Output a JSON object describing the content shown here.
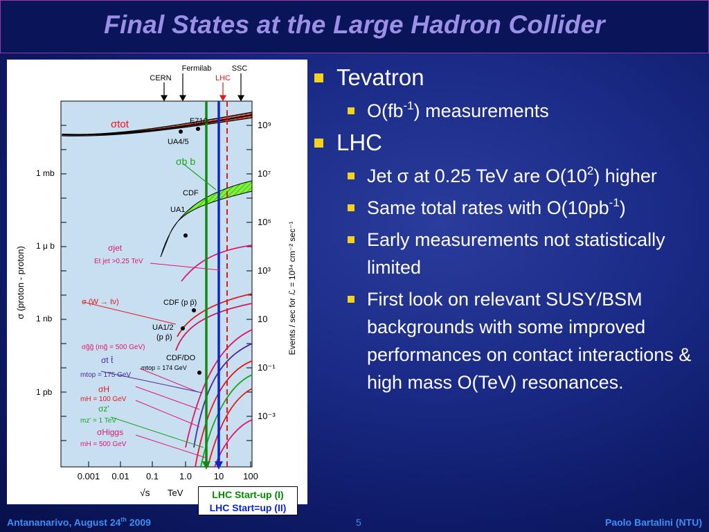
{
  "slide": {
    "title": "Final States at the Large Hadron Collider",
    "page_number": "5",
    "footer_left_main": "Antananarivo, August 24",
    "footer_left_sup": "th",
    "footer_left_tail": " 2009",
    "footer_right": "Paolo Bartalini (NTU)"
  },
  "bullets": {
    "tevatron": "Tevatron",
    "tev_sub1_pre": "O(fb",
    "tev_sub1_sup": "-1",
    "tev_sub1_post": ") measurements",
    "lhc": "LHC",
    "lhc_sub1_pre": "Jet σ at 0.25 TeV are O(10",
    "lhc_sub1_sup": "2",
    "lhc_sub1_post": ") higher",
    "lhc_sub2_pre": "Same total rates with O(10pb",
    "lhc_sub2_sup": "-1",
    "lhc_sub2_post": ")",
    "lhc_sub3": "Early measurements not statistically limited",
    "lhc_sub4": "First look on relevant SUSY/BSM backgrounds with some improved performances on contact interactions & high mass O(TeV) resonances."
  },
  "figure": {
    "legend_lhc_startup_1": "LHC Start-up (I)",
    "legend_lhc_startup_2": "LHC Start=up (II)",
    "top_labels": {
      "fermilab": "Fermilab",
      "ssc": "SSC",
      "cern": "CERN",
      "lhc": "LHC"
    },
    "left_axis_label": "σ (proton - proton)",
    "left_ticks": [
      "1 mb",
      "1 μ b",
      "1 nb",
      "1 pb"
    ],
    "right_axis_label": "Events / sec for ℒ = 10³⁴ cm⁻² sec⁻¹",
    "right_ticks": [
      "10⁹",
      "10⁷",
      "10⁵",
      "10³",
      "10",
      "10⁻¹",
      "10⁻³"
    ],
    "x_ticks": [
      "0.001",
      "0.01",
      "0.1",
      "1.0",
      "10",
      "100"
    ],
    "x_label_sqrt": "√s",
    "x_label_unit": "TeV",
    "labels": {
      "e710": "E710",
      "ua45": "UA4/5",
      "cdf": "CDF",
      "ua1": "UA1",
      "cdf_pp": "CDF (p p̄)",
      "ua12": "UA1/2",
      "ua12_pp": "(p p̄)",
      "cdfdo": "CDF/DO",
      "mtop174": "mtop = 174 GeV",
      "sigma_tot": "σtot",
      "sigma_bb": "σb b",
      "sigma_jet": "σjet",
      "jet_cut": "Et jet >0.25 TeV",
      "sigma_w": "σ (W → ℓν)",
      "sigma_gg": "σg̃g̃ (mg̃ = 500 GeV)",
      "sigma_tt": "σt t̄",
      "mtop175": "mtop = 175 GeV",
      "sigma_h": "σH",
      "mh100": "mH = 100 GeV",
      "sigma_z": "σz'",
      "mz1": "mz' = 1 TeV",
      "sigma_higgs": "σHiggs",
      "mh500": "mH = 500 GeV"
    }
  },
  "colors": {
    "title": "#9b8fe6",
    "bullet_box": "#f2d21e",
    "footer": "#3e8ef4",
    "lhc_startup_1": "#008a00",
    "lhc_startup_2": "#0a28c8"
  }
}
